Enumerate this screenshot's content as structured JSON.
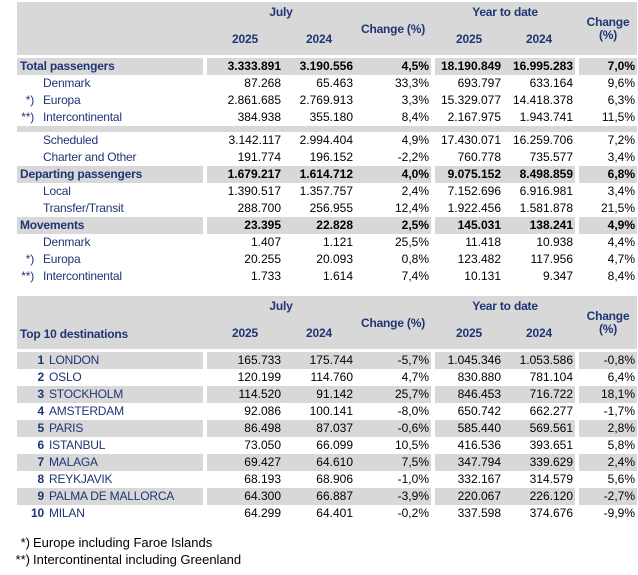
{
  "header": {
    "july": "July",
    "ytd": "Year to date",
    "change": "Change (%)",
    "change_l1": "Change",
    "change_l2": "(%)",
    "y2025": "2025",
    "y2024": "2024"
  },
  "table1": {
    "rows": [
      {
        "style": "total",
        "marker": "",
        "label": "Total passengers",
        "values": [
          "3.333.891",
          "3.190.556",
          "4,5%",
          "18.190.849",
          "16.995.283",
          "7,0%"
        ]
      },
      {
        "style": "sub",
        "marker": "",
        "label": "Denmark",
        "values": [
          "87.268",
          "65.463",
          "33,3%",
          "693.797",
          "633.164",
          "9,6%"
        ]
      },
      {
        "style": "sub",
        "marker": "*)",
        "label": "Europa",
        "values": [
          "2.861.685",
          "2.769.913",
          "3,3%",
          "15.329.077",
          "14.418.378",
          "6,3%"
        ]
      },
      {
        "style": "sub",
        "marker": "**)",
        "label": "Intercontinental",
        "values": [
          "384.938",
          "355.180",
          "8,4%",
          "2.167.975",
          "1.943.741",
          "11,5%"
        ]
      },
      {
        "style": "separator"
      },
      {
        "style": "sub",
        "marker": "",
        "label": "Scheduled",
        "values": [
          "3.142.117",
          "2.994.404",
          "4,9%",
          "17.430.071",
          "16.259.706",
          "7,2%"
        ]
      },
      {
        "style": "sub",
        "marker": "",
        "label": "Charter and Other",
        "values": [
          "191.774",
          "196.152",
          "-2,2%",
          "760.778",
          "735.577",
          "3,4%"
        ]
      },
      {
        "style": "total",
        "marker": "",
        "label": "Departing passengers",
        "values": [
          "1.679.217",
          "1.614.712",
          "4,0%",
          "9.075.152",
          "8.498.859",
          "6,8%"
        ]
      },
      {
        "style": "sub",
        "marker": "",
        "label": "Local",
        "values": [
          "1.390.517",
          "1.357.757",
          "2,4%",
          "7.152.696",
          "6.916.981",
          "3,4%"
        ]
      },
      {
        "style": "sub",
        "marker": "",
        "label": "Transfer/Transit",
        "values": [
          "288.700",
          "256.955",
          "12,4%",
          "1.922.456",
          "1.581.878",
          "21,5%"
        ]
      },
      {
        "style": "total",
        "marker": "",
        "label": "Movements",
        "values": [
          "23.395",
          "22.828",
          "2,5%",
          "145.031",
          "138.241",
          "4,9%"
        ]
      },
      {
        "style": "sub",
        "marker": "",
        "label": "Denmark",
        "values": [
          "1.407",
          "1.121",
          "25,5%",
          "11.418",
          "10.938",
          "4,4%"
        ]
      },
      {
        "style": "sub",
        "marker": "*)",
        "label": "Europa",
        "values": [
          "20.255",
          "20.093",
          "0,8%",
          "123.482",
          "117.956",
          "4,7%"
        ]
      },
      {
        "style": "sub",
        "marker": "**)",
        "label": "Intercontinental",
        "values": [
          "1.733",
          "1.614",
          "7,4%",
          "10.131",
          "9.347",
          "8,4%"
        ]
      }
    ]
  },
  "table2": {
    "title": "Top 10 destinations",
    "rows": [
      {
        "rank": "1",
        "city": "LONDON",
        "values": [
          "165.733",
          "175.744",
          "-5,7%",
          "1.045.346",
          "1.053.586",
          "-0,8%"
        ]
      },
      {
        "rank": "2",
        "city": "OSLO",
        "values": [
          "120.199",
          "114.760",
          "4,7%",
          "830.880",
          "781.104",
          "6,4%"
        ]
      },
      {
        "rank": "3",
        "city": "STOCKHOLM",
        "values": [
          "114.520",
          "91.142",
          "25,7%",
          "846.453",
          "716.722",
          "18,1%"
        ]
      },
      {
        "rank": "4",
        "city": "AMSTERDAM",
        "values": [
          "92.086",
          "100.141",
          "-8,0%",
          "650.742",
          "662.277",
          "-1,7%"
        ]
      },
      {
        "rank": "5",
        "city": "PARIS",
        "values": [
          "86.498",
          "87.037",
          "-0,6%",
          "585.440",
          "569.561",
          "2,8%"
        ]
      },
      {
        "rank": "6",
        "city": "ISTANBUL",
        "values": [
          "73.050",
          "66.099",
          "10,5%",
          "416.536",
          "393.651",
          "5,8%"
        ]
      },
      {
        "rank": "7",
        "city": "MALAGA",
        "values": [
          "69.427",
          "64.610",
          "7,5%",
          "347.794",
          "339.629",
          "2,4%"
        ]
      },
      {
        "rank": "8",
        "city": "REYKJAVIK",
        "values": [
          "68.193",
          "68.906",
          "-1,0%",
          "332.167",
          "314.579",
          "5,6%"
        ]
      },
      {
        "rank": "9",
        "city": "PALMA DE MALLORCA",
        "values": [
          "64.300",
          "66.887",
          "-3,9%",
          "220.067",
          "226.120",
          "-2,7%"
        ]
      },
      {
        "rank": "10",
        "city": "MILAN",
        "values": [
          "64.299",
          "64.401",
          "-0,2%",
          "337.598",
          "374.676",
          "-9,9%"
        ]
      }
    ]
  },
  "footnotes": [
    {
      "marker": "*)",
      "text": "Europe including Faroe Islands"
    },
    {
      "marker": "**)",
      "text": "Intercontinental including Greenland"
    }
  ],
  "colors": {
    "band_gray": "#d8d8d8",
    "navy_text": "#1f3575",
    "number_text": "#000000"
  }
}
